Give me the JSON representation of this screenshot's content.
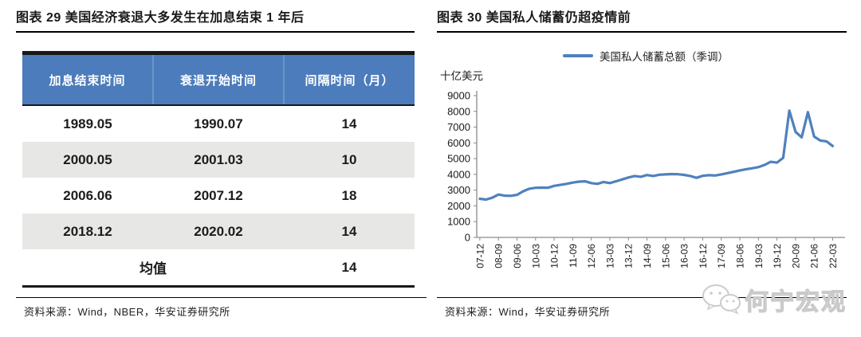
{
  "left_panel": {
    "title": "图表 29  美国经济衰退大多发生在加息结束 1 年后",
    "table": {
      "headers": [
        "加息结束时间",
        "衰退开始时间",
        "间隔时间（月）"
      ],
      "rows": [
        [
          "1989.05",
          "1990.07",
          "14"
        ],
        [
          "2000.05",
          "2001.03",
          "10"
        ],
        [
          "2006.06",
          "2007.12",
          "18"
        ],
        [
          "2018.12",
          "2020.02",
          "14"
        ]
      ],
      "summary": {
        "label": "均值",
        "value": "14"
      }
    },
    "source": "资料来源：Wind，NBER，华安证券研究所"
  },
  "right_panel": {
    "title": "图表 30  美国私人储蓄仍超疫情前",
    "unit_label": "十亿美元",
    "legend_label": "美国私人储蓄总额（季调）",
    "source": "资料来源：Wind，华安证券研究所",
    "watermark_text": "何宁宏观"
  },
  "chart_data": {
    "type": "line",
    "title": "美国私人储蓄仍超疫情前",
    "ylabel": "十亿美元",
    "legend": [
      "美国私人储蓄总额（季调）"
    ],
    "legend_position": "top",
    "grid": false,
    "ylim": [
      0,
      9000
    ],
    "ytick_step": 1000,
    "x_label_every": 3,
    "x": [
      "07-12",
      "08-03",
      "08-06",
      "08-09",
      "08-12",
      "09-03",
      "09-06",
      "09-09",
      "09-12",
      "10-03",
      "10-06",
      "10-09",
      "10-12",
      "11-03",
      "11-06",
      "11-09",
      "11-12",
      "12-03",
      "12-06",
      "12-09",
      "12-12",
      "13-03",
      "13-06",
      "13-09",
      "13-12",
      "14-03",
      "14-06",
      "14-09",
      "14-12",
      "15-03",
      "15-06",
      "15-09",
      "15-12",
      "16-03",
      "16-06",
      "16-09",
      "16-12",
      "17-03",
      "17-06",
      "17-09",
      "17-12",
      "18-03",
      "18-06",
      "18-09",
      "18-12",
      "19-03",
      "19-06",
      "19-09",
      "19-12",
      "20-03",
      "20-06",
      "20-09",
      "20-12",
      "21-03",
      "21-06",
      "21-09",
      "21-12",
      "22-03"
    ],
    "series": [
      {
        "name": "美国私人储蓄总额（季调）",
        "color": "#4f81bd",
        "values": [
          2450,
          2400,
          2520,
          2720,
          2650,
          2640,
          2700,
          2930,
          3090,
          3150,
          3160,
          3150,
          3270,
          3330,
          3400,
          3480,
          3540,
          3560,
          3450,
          3400,
          3520,
          3450,
          3560,
          3680,
          3800,
          3900,
          3850,
          3960,
          3900,
          3980,
          4000,
          4020,
          4010,
          3970,
          3900,
          3780,
          3910,
          3950,
          3930,
          4000,
          4080,
          4160,
          4250,
          4330,
          4390,
          4460,
          4600,
          4800,
          4750,
          5050,
          8050,
          6700,
          6350,
          7950,
          6400,
          6150,
          6100,
          5800
        ]
      }
    ]
  },
  "colors": {
    "accent_blue": "#4f81bd",
    "table_header_bg": "#4c7cbb",
    "stripe_gray": "#e7e7e6",
    "axis_gray": "#8a8a8a",
    "watermark_gray": "#cccccc"
  }
}
